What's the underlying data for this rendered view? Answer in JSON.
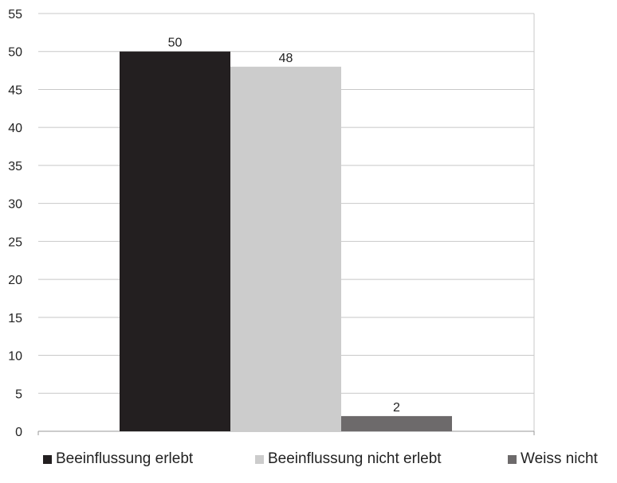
{
  "chart_data": {
    "type": "bar",
    "categories": [
      ""
    ],
    "series": [
      {
        "name": "Beeinflussung erlebt",
        "values": [
          50
        ],
        "color": "#231f20"
      },
      {
        "name": "Beeinflussung nicht erlebt",
        "values": [
          48
        ],
        "color": "#cccccc"
      },
      {
        "name": "Weiss nicht",
        "values": [
          2
        ],
        "color": "#6d6a6b"
      }
    ],
    "data_labels": [
      "50",
      "48",
      "2"
    ],
    "ylim": [
      0,
      55
    ],
    "yticks": [
      0,
      5,
      10,
      15,
      20,
      25,
      30,
      35,
      40,
      45,
      50,
      55
    ],
    "ytick_labels": [
      "0",
      "5",
      "10",
      "15",
      "20",
      "25",
      "30",
      "35",
      "40",
      "45",
      "50",
      "55"
    ],
    "grid": true,
    "legend_position": "bottom"
  }
}
